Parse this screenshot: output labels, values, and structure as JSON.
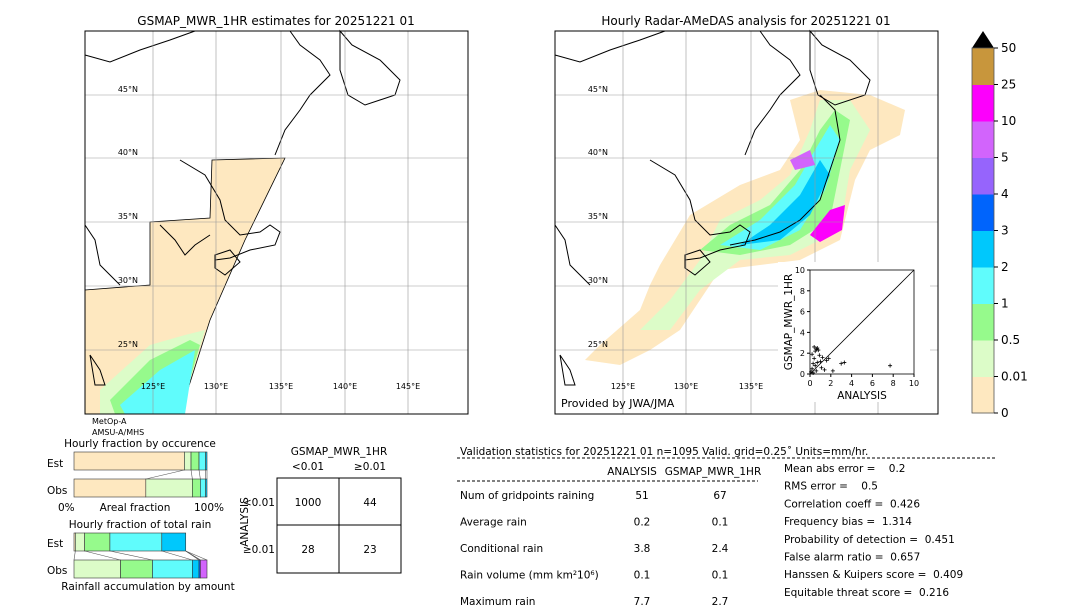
{
  "left_map": {
    "title": "GSMAP_MWR_1HR estimates for 20251221 01",
    "lat_labels": [
      "45°N",
      "40°N",
      "35°N",
      "30°N",
      "25°N"
    ],
    "lon_labels": [
      "125°E",
      "130°E",
      "135°E",
      "140°E",
      "145°E"
    ],
    "sensor_line1": "MetOp-A",
    "sensor_line2": "AMSU-A/MHS"
  },
  "right_map": {
    "title": "Hourly Radar-AMeDAS analysis for 20251221 01",
    "lat_labels": [
      "45°N",
      "40°N",
      "35°N",
      "30°N",
      "25°N"
    ],
    "lon_labels": [
      "125°E",
      "130°E",
      "135°E"
    ],
    "credit": "Provided by JWA/JMA"
  },
  "colorbar": {
    "labels": [
      "0",
      "0.01",
      "0.5",
      "1",
      "2",
      "3",
      "4",
      "5",
      "10",
      "25",
      "50"
    ],
    "colors": [
      "#fee8c0",
      "#dcfcc8",
      "#96fa8c",
      "#60fcfc",
      "#00c8fc",
      "#0064fc",
      "#9664fc",
      "#d264fc",
      "#fc00fc",
      "#c8963c"
    ],
    "extend_color": "#000000"
  },
  "chart_data": [
    {
      "type": "scatter",
      "xlabel": "ANALYSIS",
      "ylabel": "GSMAP_MWR_1HR",
      "xlim": [
        0,
        10
      ],
      "ylim": [
        0,
        10
      ],
      "xticks": [
        "0",
        "2",
        "4",
        "6",
        "8",
        "10"
      ],
      "yticks": [
        "0",
        "2",
        "4",
        "6",
        "8",
        "10"
      ],
      "diagonal": true,
      "points": [
        [
          0.1,
          0.2
        ],
        [
          0.2,
          0.5
        ],
        [
          0.3,
          1.0
        ],
        [
          0.4,
          1.5
        ],
        [
          0.5,
          2.2
        ],
        [
          0.6,
          2.4
        ],
        [
          0.7,
          2.5
        ],
        [
          0.8,
          2.3
        ],
        [
          0.9,
          1.8
        ],
        [
          1.0,
          1.2
        ],
        [
          0.3,
          0.1
        ],
        [
          0.5,
          0.8
        ],
        [
          0.7,
          1.1
        ],
        [
          1.2,
          1.6
        ],
        [
          1.4,
          0.4
        ],
        [
          1.6,
          1.3
        ],
        [
          1.8,
          1.5
        ],
        [
          2.2,
          0.3
        ],
        [
          3.0,
          1.0
        ],
        [
          3.3,
          1.1
        ],
        [
          7.7,
          0.8
        ],
        [
          0.2,
          1.9
        ],
        [
          0.4,
          2.6
        ],
        [
          1.1,
          0.6
        ],
        [
          0.6,
          0.3
        ]
      ]
    },
    {
      "type": "bar",
      "title": "Hourly fraction by occurence",
      "xlabel": "Areal fraction",
      "x_left_label": "0%",
      "x_right_label": "100%",
      "categories": [
        "Est",
        "Obs"
      ],
      "series": [
        {
          "category": "Est",
          "bin_fractions": [
            0.83,
            0.05,
            0.06,
            0.05,
            0.01
          ]
        },
        {
          "category": "Obs",
          "bin_fractions": [
            0.54,
            0.35,
            0.06,
            0.04,
            0.01
          ]
        }
      ]
    },
    {
      "type": "bar",
      "title": "Hourly fraction of total rain",
      "xlabel": "Rainfall accumulation by amount",
      "categories": [
        "Est",
        "Obs"
      ],
      "series": [
        {
          "category": "Est",
          "bin_fractions": [
            0.01,
            0.07,
            0.19,
            0.39,
            0.18,
            0.0,
            0.0,
            0.0
          ]
        },
        {
          "category": "Obs",
          "bin_fractions": [
            0.0,
            0.35,
            0.24,
            0.3,
            0.05,
            0.01,
            0.0,
            0.05
          ]
        }
      ]
    },
    {
      "type": "table",
      "title": "GSMAP_MWR_1HR",
      "col_headers": [
        "<0.01",
        "≥0.01"
      ],
      "row_label": "ANALYSIS",
      "row_headers": [
        "<0.01",
        "≥0.01"
      ],
      "cells": [
        [
          "1000",
          "44"
        ],
        [
          "28",
          "23"
        ]
      ]
    }
  ],
  "stats": {
    "header": "Validation statistics for 20251221 01  n=1095 Valid. grid=0.25˚ Units=mm/hr.",
    "col_analysis": "ANALYSIS",
    "col_gsmap": "GSMAP_MWR_1HR",
    "rows": [
      {
        "label": "Num of gridpoints raining",
        "analysis": "51",
        "gsmap": "67"
      },
      {
        "label": "Average rain",
        "analysis": "0.2",
        "gsmap": "0.1"
      },
      {
        "label": "Conditional rain",
        "analysis": "3.8",
        "gsmap": "2.4"
      },
      {
        "label": "Rain volume (mm km²10⁶)",
        "analysis": "0.1",
        "gsmap": "0.1"
      },
      {
        "label": "Maximum rain",
        "analysis": "7.7",
        "gsmap": "2.7"
      }
    ],
    "scores": [
      "Mean abs error =    0.2",
      "RMS error =    0.5",
      "Correlation coeff =  0.426",
      "Frequency bias =  1.314",
      "Probability of detection =  0.451",
      "False alarm ratio =  0.657",
      "Hanssen & Kuipers score =  0.409",
      "Equitable threat score =  0.216"
    ]
  }
}
